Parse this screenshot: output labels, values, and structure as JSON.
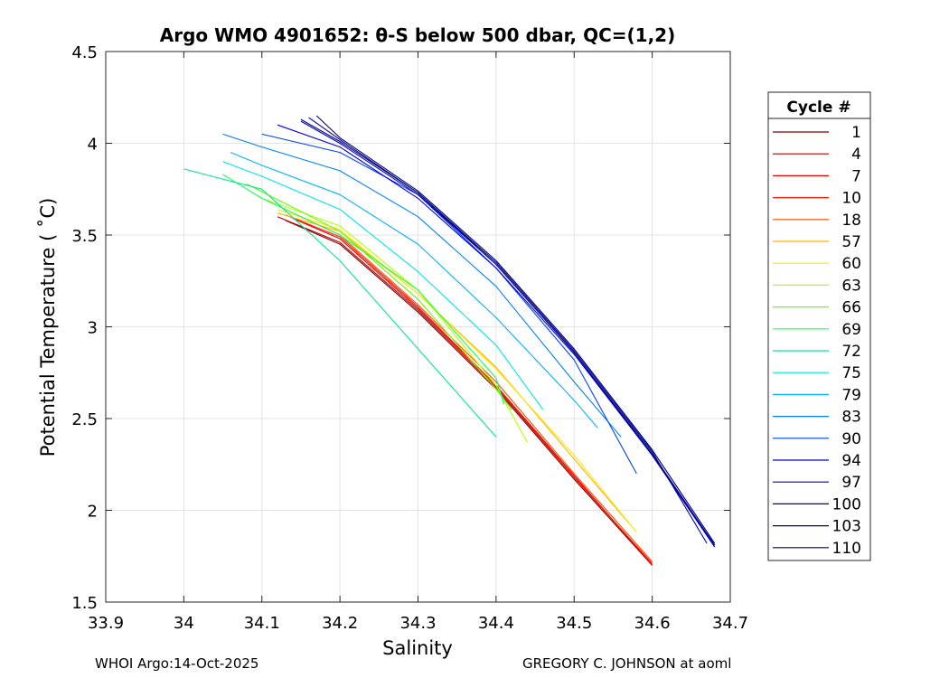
{
  "chart_data": {
    "type": "line",
    "title": "Argo WMO 4901652: θ-S below 500 dbar,  QC=(1,2)",
    "xlabel": "Salinity",
    "ylabel": "Potential Temperature ( ˚C)",
    "xlim": [
      33.9,
      34.7
    ],
    "ylim": [
      1.5,
      4.5
    ],
    "xticks": [
      33.9,
      34,
      34.1,
      34.2,
      34.3,
      34.4,
      34.5,
      34.6,
      34.7
    ],
    "xtick_labels": [
      "33.9",
      "34",
      "34.1",
      "34.2",
      "34.3",
      "34.4",
      "34.5",
      "34.6",
      "34.7"
    ],
    "yticks": [
      1.5,
      2,
      2.5,
      3,
      3.5,
      4,
      4.5
    ],
    "ytick_labels": [
      "1.5",
      "2",
      "2.5",
      "3",
      "3.5",
      "4",
      "4.5"
    ],
    "grid": true,
    "legend_title": "Cycle #",
    "legend_position": "outside-right",
    "series": [
      {
        "name": "1",
        "color": "#800000",
        "x": [
          34.13,
          34.2,
          34.3,
          34.4,
          34.5,
          34.6
        ],
        "y": [
          3.58,
          3.45,
          3.08,
          2.66,
          2.17,
          1.7
        ]
      },
      {
        "name": "4",
        "color": "#b30000",
        "x": [
          34.12,
          34.2,
          34.3,
          34.4,
          34.5,
          34.6
        ],
        "y": [
          3.6,
          3.46,
          3.09,
          2.67,
          2.18,
          1.71
        ]
      },
      {
        "name": "7",
        "color": "#e60000",
        "x": [
          34.14,
          34.2,
          34.3,
          34.4,
          34.5,
          34.6
        ],
        "y": [
          3.59,
          3.48,
          3.1,
          2.68,
          2.19,
          1.7
        ]
      },
      {
        "name": "10",
        "color": "#ff1a00",
        "x": [
          34.13,
          34.2,
          34.3,
          34.4,
          34.5,
          34.6
        ],
        "y": [
          3.61,
          3.49,
          3.11,
          2.68,
          2.18,
          1.71
        ]
      },
      {
        "name": "18",
        "color": "#ff4d00",
        "x": [
          34.15,
          34.2,
          34.3,
          34.4,
          34.5,
          34.6
        ],
        "y": [
          3.6,
          3.5,
          3.12,
          2.7,
          2.2,
          1.72
        ]
      },
      {
        "name": "57",
        "color": "#ffb300",
        "x": [
          34.12,
          34.2,
          34.3,
          34.4,
          34.5,
          34.57
        ],
        "y": [
          3.62,
          3.52,
          3.18,
          2.78,
          2.28,
          1.93
        ]
      },
      {
        "name": "60",
        "color": "#ffe600",
        "x": [
          34.12,
          34.2,
          34.3,
          34.4,
          34.5,
          34.58
        ],
        "y": [
          3.64,
          3.53,
          3.18,
          2.77,
          2.3,
          1.88
        ]
      },
      {
        "name": "63",
        "color": "#b3ff00",
        "x": [
          34.1,
          34.2,
          34.3,
          34.4,
          34.44
        ],
        "y": [
          3.7,
          3.55,
          3.2,
          2.68,
          2.37
        ]
      },
      {
        "name": "66",
        "color": "#66ff00",
        "x": [
          34.08,
          34.2,
          34.3,
          34.4,
          34.42
        ],
        "y": [
          3.78,
          3.52,
          3.15,
          2.66,
          2.55
        ]
      },
      {
        "name": "69",
        "color": "#1aff4d",
        "x": [
          34.05,
          34.1,
          34.2,
          34.3,
          34.4,
          34.41
        ],
        "y": [
          3.83,
          3.7,
          3.5,
          3.2,
          2.72,
          2.58
        ]
      },
      {
        "name": "72",
        "color": "#00e699",
        "x": [
          34.0,
          34.1,
          34.2,
          34.3,
          34.4
        ],
        "y": [
          3.86,
          3.75,
          3.36,
          2.88,
          2.4
        ]
      },
      {
        "name": "75",
        "color": "#00e6e6",
        "x": [
          34.05,
          34.1,
          34.2,
          34.3,
          34.4,
          34.46
        ],
        "y": [
          3.9,
          3.82,
          3.64,
          3.3,
          2.9,
          2.55
        ]
      },
      {
        "name": "79",
        "color": "#00b3ff",
        "x": [
          34.06,
          34.1,
          34.2,
          34.3,
          34.4,
          34.5,
          34.53
        ],
        "y": [
          3.95,
          3.88,
          3.72,
          3.45,
          3.05,
          2.6,
          2.45
        ]
      },
      {
        "name": "83",
        "color": "#0080ff",
        "x": [
          34.05,
          34.1,
          34.2,
          34.3,
          34.4,
          34.5,
          34.56
        ],
        "y": [
          4.05,
          3.98,
          3.85,
          3.6,
          3.22,
          2.7,
          2.4
        ]
      },
      {
        "name": "90",
        "color": "#0040ff",
        "x": [
          34.1,
          34.2,
          34.3,
          34.4,
          34.5,
          34.58
        ],
        "y": [
          4.05,
          3.95,
          3.72,
          3.32,
          2.82,
          2.2
        ]
      },
      {
        "name": "94",
        "color": "#0000e6",
        "x": [
          34.12,
          34.2,
          34.3,
          34.4,
          34.5,
          34.6,
          34.68
        ],
        "y": [
          4.1,
          3.98,
          3.7,
          3.32,
          2.85,
          2.3,
          1.8
        ]
      },
      {
        "name": "97",
        "color": "#0000b3",
        "x": [
          34.15,
          34.2,
          34.3,
          34.4,
          34.5,
          34.6,
          34.68
        ],
        "y": [
          4.12,
          4.0,
          3.72,
          3.34,
          2.86,
          2.31,
          1.81
        ]
      },
      {
        "name": "100",
        "color": "#000099",
        "x": [
          34.16,
          34.2,
          34.3,
          34.4,
          34.5,
          34.6,
          34.67
        ],
        "y": [
          4.14,
          4.02,
          3.73,
          3.35,
          2.87,
          2.32,
          1.82
        ]
      },
      {
        "name": "103",
        "color": "#000080",
        "x": [
          34.15,
          34.2,
          34.3,
          34.4,
          34.5,
          34.6,
          34.68
        ],
        "y": [
          4.13,
          4.01,
          3.73,
          3.34,
          2.86,
          2.3,
          1.81
        ]
      },
      {
        "name": "110",
        "color": "#000066",
        "x": [
          34.17,
          34.2,
          34.3,
          34.4,
          34.5,
          34.6,
          34.68
        ],
        "y": [
          4.15,
          4.03,
          3.74,
          3.36,
          2.88,
          2.33,
          1.82
        ]
      }
    ]
  },
  "footer": {
    "left": "WHOI Argo:14-Oct-2025",
    "right": "GREGORY C. JOHNSON at aoml"
  }
}
